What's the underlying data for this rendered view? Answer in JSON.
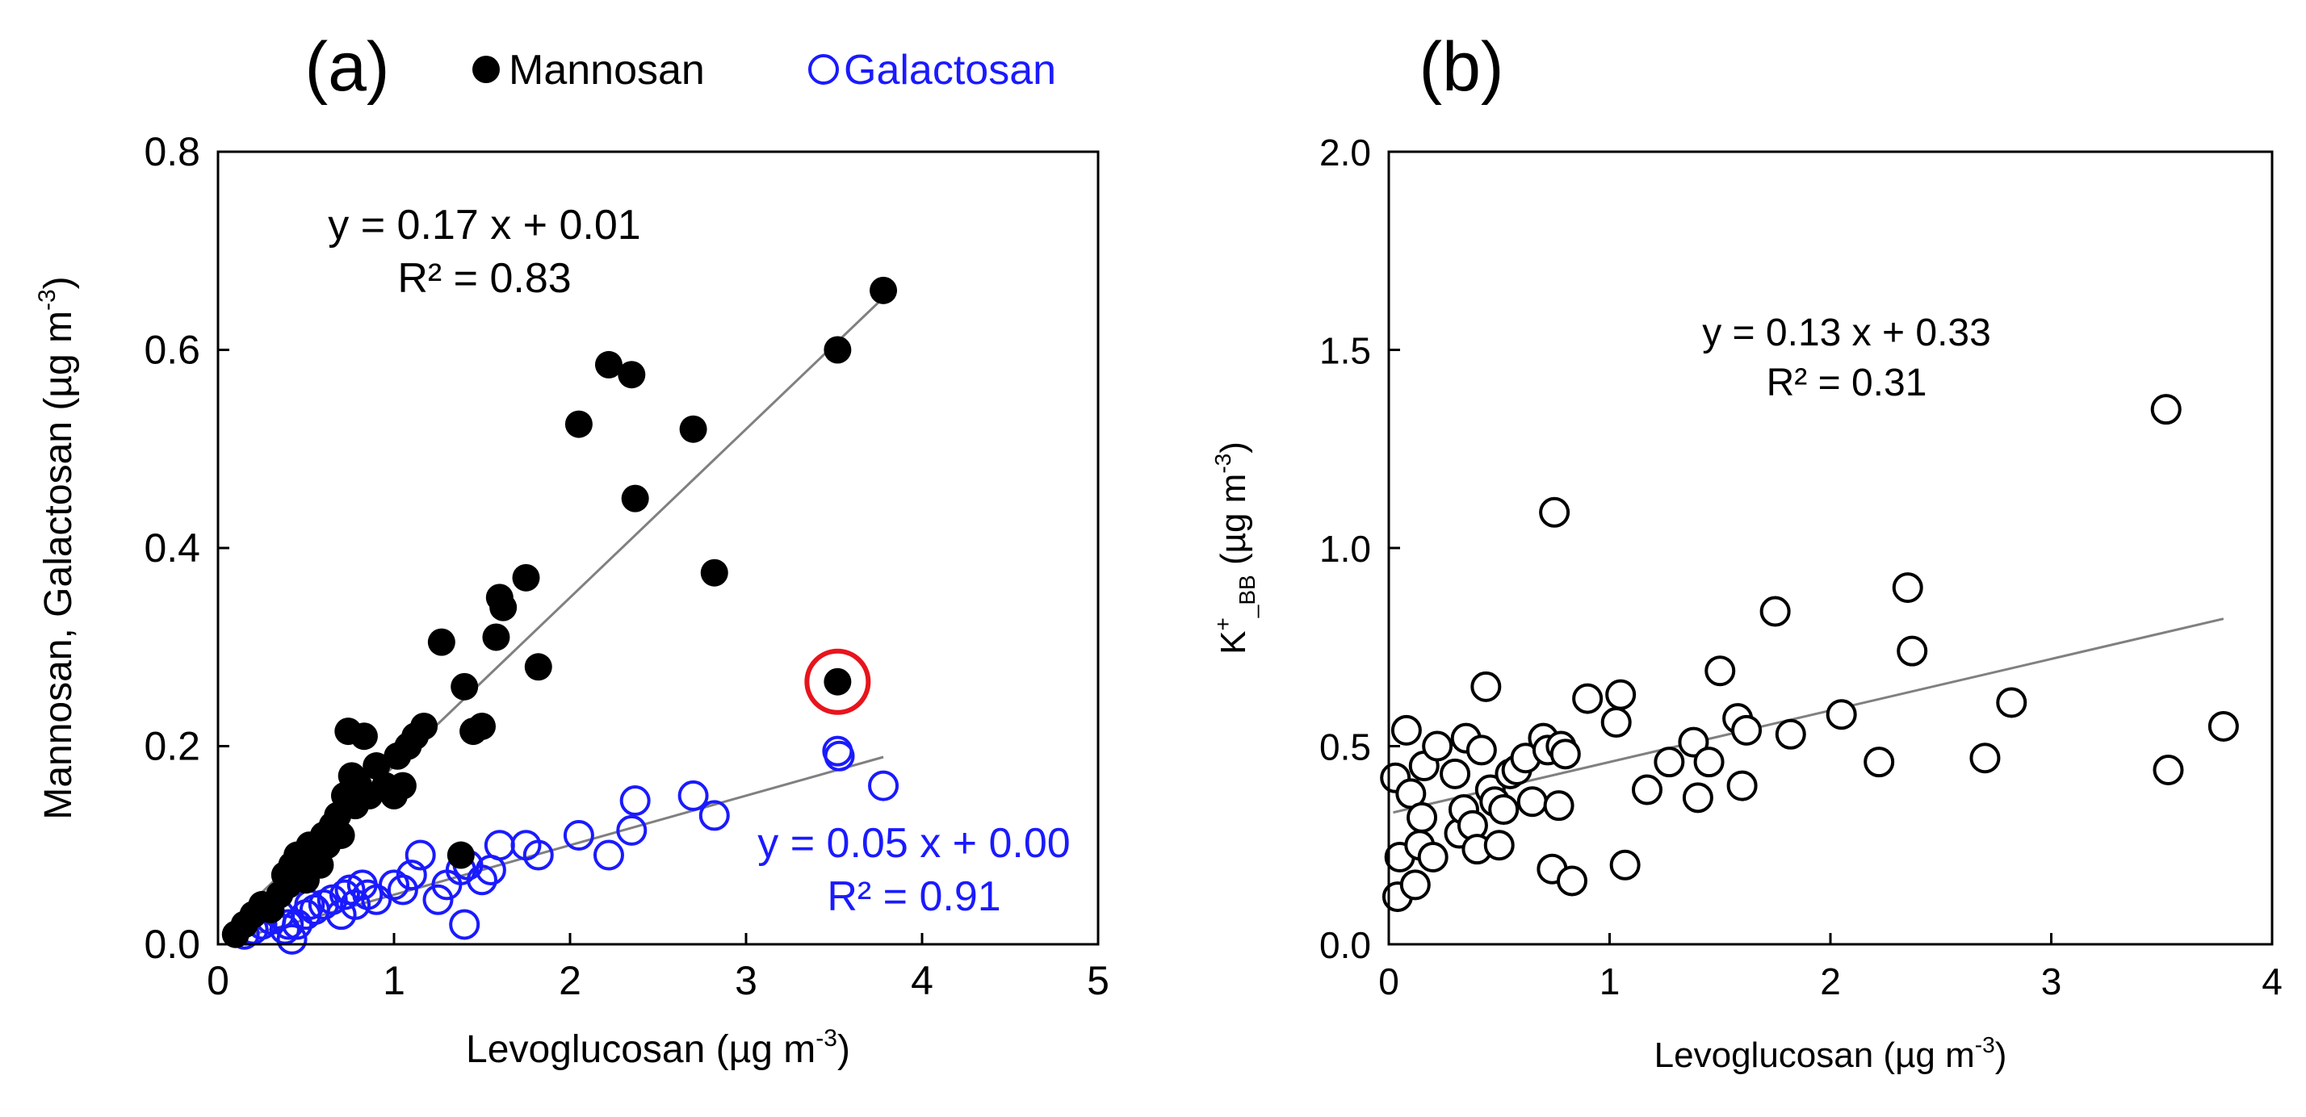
{
  "figure": {
    "panels": [
      {
        "id": "a",
        "label": "(a)"
      },
      {
        "id": "b",
        "label": "(b)"
      }
    ]
  },
  "colors": {
    "mannosan": "#000000",
    "galactosan": "#1a1aff",
    "highlight_ring": "#e8141c",
    "fit_line": "#808080",
    "axis": "#000000"
  },
  "chart_data": [
    {
      "type": "scatter",
      "panel_label": "(a)",
      "xlabel": "Levoglucosan (µg m",
      "xlabel_sup": "-3",
      "xlabel_end": ")",
      "ylabel": "Mannosan, Galactosan (µg m",
      "ylabel_sup": "-3",
      "ylabel_end": ")",
      "xlim": [
        0,
        5
      ],
      "ylim": [
        0,
        0.8
      ],
      "xticks": [
        0,
        1,
        2,
        3,
        4,
        5
      ],
      "xtick_labels": [
        "0",
        "1",
        "2",
        "3",
        "4",
        "5"
      ],
      "yticks": [
        0,
        0.2,
        0.4,
        0.6,
        0.8
      ],
      "ytick_labels": [
        "0.0",
        "0.2",
        "0.4",
        "0.6",
        "0.8"
      ],
      "legend": {
        "placement": "top",
        "entries": [
          {
            "label": "Mannosan",
            "marker": "filled",
            "color": "#000000"
          },
          {
            "label": "Galactosan",
            "marker": "open",
            "color": "#1a1aff"
          }
        ]
      },
      "series": [
        {
          "name": "Mannosan",
          "marker": "filled",
          "color": "#000000",
          "fit": {
            "slope": 0.17,
            "intercept": 0.01,
            "x_range": [
              0.1,
              3.78
            ]
          },
          "eq_line1": "y = 0.17 x + 0.01",
          "eq_line2": "R² = 0.83",
          "points": [
            [
              0.1,
              0.01
            ],
            [
              0.15,
              0.02
            ],
            [
              0.2,
              0.03
            ],
            [
              0.25,
              0.04
            ],
            [
              0.3,
              0.035
            ],
            [
              0.35,
              0.05
            ],
            [
              0.38,
              0.07
            ],
            [
              0.4,
              0.06
            ],
            [
              0.42,
              0.08
            ],
            [
              0.45,
              0.09
            ],
            [
              0.48,
              0.07
            ],
            [
              0.5,
              0.065
            ],
            [
              0.52,
              0.1
            ],
            [
              0.55,
              0.09
            ],
            [
              0.58,
              0.08
            ],
            [
              0.6,
              0.11
            ],
            [
              0.62,
              0.1
            ],
            [
              0.65,
              0.12
            ],
            [
              0.68,
              0.13
            ],
            [
              0.7,
              0.11
            ],
            [
              0.72,
              0.15
            ],
            [
              0.74,
              0.215
            ],
            [
              0.76,
              0.17
            ],
            [
              0.78,
              0.14
            ],
            [
              0.8,
              0.16
            ],
            [
              0.83,
              0.21
            ],
            [
              0.86,
              0.15
            ],
            [
              0.9,
              0.18
            ],
            [
              0.95,
              0.16
            ],
            [
              1.0,
              0.15
            ],
            [
              1.02,
              0.19
            ],
            [
              1.05,
              0.16
            ],
            [
              1.08,
              0.2
            ],
            [
              1.12,
              0.21
            ],
            [
              1.17,
              0.22
            ],
            [
              1.27,
              0.305
            ],
            [
              1.38,
              0.09
            ],
            [
              1.4,
              0.26
            ],
            [
              1.45,
              0.215
            ],
            [
              1.5,
              0.22
            ],
            [
              1.58,
              0.31
            ],
            [
              1.6,
              0.35
            ],
            [
              1.62,
              0.34
            ],
            [
              1.75,
              0.37
            ],
            [
              1.82,
              0.28
            ],
            [
              2.05,
              0.525
            ],
            [
              2.22,
              0.585
            ],
            [
              2.35,
              0.575
            ],
            [
              2.37,
              0.45
            ],
            [
              2.7,
              0.52
            ],
            [
              2.82,
              0.375
            ],
            [
              3.52,
              0.6
            ],
            [
              3.78,
              0.66
            ],
            [
              3.52,
              0.265
            ]
          ]
        },
        {
          "name": "Galactosan",
          "marker": "open",
          "color": "#1a1aff",
          "fit": {
            "slope": 0.05,
            "intercept": 0.0,
            "x_range": [
              0.1,
              3.78
            ]
          },
          "eq_line1": "y = 0.05 x + 0.00",
          "eq_line2": "R² = 0.91",
          "points": [
            [
              0.15,
              0.01
            ],
            [
              0.2,
              0.015
            ],
            [
              0.25,
              0.02
            ],
            [
              0.3,
              0.025
            ],
            [
              0.35,
              0.03
            ],
            [
              0.38,
              0.015
            ],
            [
              0.4,
              0.02
            ],
            [
              0.42,
              0.005
            ],
            [
              0.45,
              0.02
            ],
            [
              0.5,
              0.03
            ],
            [
              0.52,
              0.04
            ],
            [
              0.55,
              0.035
            ],
            [
              0.6,
              0.04
            ],
            [
              0.65,
              0.045
            ],
            [
              0.7,
              0.03
            ],
            [
              0.72,
              0.05
            ],
            [
              0.75,
              0.055
            ],
            [
              0.78,
              0.04
            ],
            [
              0.82,
              0.06
            ],
            [
              0.85,
              0.05
            ],
            [
              0.9,
              0.045
            ],
            [
              1.0,
              0.06
            ],
            [
              1.05,
              0.055
            ],
            [
              1.1,
              0.07
            ],
            [
              1.15,
              0.09
            ],
            [
              1.25,
              0.045
            ],
            [
              1.3,
              0.06
            ],
            [
              1.38,
              0.075
            ],
            [
              1.4,
              0.02
            ],
            [
              1.42,
              0.08
            ],
            [
              1.5,
              0.065
            ],
            [
              1.55,
              0.075
            ],
            [
              1.6,
              0.1
            ],
            [
              1.75,
              0.1
            ],
            [
              1.82,
              0.09
            ],
            [
              2.05,
              0.11
            ],
            [
              2.22,
              0.09
            ],
            [
              2.35,
              0.115
            ],
            [
              2.37,
              0.145
            ],
            [
              2.7,
              0.15
            ],
            [
              2.82,
              0.13
            ],
            [
              3.52,
              0.195
            ],
            [
              3.53,
              0.19
            ],
            [
              3.78,
              0.16
            ]
          ]
        }
      ],
      "annotations": [
        {
          "type": "circle",
          "note": "highlighted outlier",
          "x": 3.52,
          "y": 0.265
        }
      ]
    },
    {
      "type": "scatter",
      "panel_label": "(b)",
      "xlabel": "Levoglucosan (µg m",
      "xlabel_sup": "-3",
      "xlabel_end": ")",
      "ylabel": "K",
      "ylabel_sup": "+",
      "ylabel_sub": "_BB",
      "ylabel_end": " (µg m",
      "ylabel_sup2": "-3",
      "ylabel_end2": ")",
      "xlim": [
        0,
        4
      ],
      "ylim": [
        0,
        2.0
      ],
      "xticks": [
        0,
        1,
        2,
        3,
        4
      ],
      "xtick_labels": [
        "0",
        "1",
        "2",
        "3",
        "4"
      ],
      "yticks": [
        0,
        0.5,
        1.0,
        1.5,
        2.0
      ],
      "ytick_labels": [
        "0.0",
        "0.5",
        "1.0",
        "1.5",
        "2.0"
      ],
      "series": [
        {
          "name": "K+_BB",
          "marker": "open",
          "color": "#000000",
          "fit": {
            "slope": 0.13,
            "intercept": 0.33,
            "x_range": [
              0.02,
              3.78
            ]
          },
          "eq_line1": "y = 0.13 x + 0.33",
          "eq_line2": "R² = 0.31",
          "points": [
            [
              0.03,
              0.42
            ],
            [
              0.04,
              0.12
            ],
            [
              0.05,
              0.22
            ],
            [
              0.08,
              0.54
            ],
            [
              0.1,
              0.38
            ],
            [
              0.12,
              0.15
            ],
            [
              0.14,
              0.25
            ],
            [
              0.15,
              0.32
            ],
            [
              0.16,
              0.45
            ],
            [
              0.2,
              0.22
            ],
            [
              0.22,
              0.5
            ],
            [
              0.3,
              0.43
            ],
            [
              0.32,
              0.28
            ],
            [
              0.34,
              0.34
            ],
            [
              0.35,
              0.52
            ],
            [
              0.38,
              0.3
            ],
            [
              0.4,
              0.24
            ],
            [
              0.42,
              0.49
            ],
            [
              0.44,
              0.65
            ],
            [
              0.46,
              0.39
            ],
            [
              0.48,
              0.36
            ],
            [
              0.5,
              0.25
            ],
            [
              0.52,
              0.34
            ],
            [
              0.55,
              0.43
            ],
            [
              0.58,
              0.44
            ],
            [
              0.62,
              0.47
            ],
            [
              0.65,
              0.36
            ],
            [
              0.7,
              0.52
            ],
            [
              0.72,
              0.49
            ],
            [
              0.74,
              0.19
            ],
            [
              0.75,
              1.09
            ],
            [
              0.77,
              0.35
            ],
            [
              0.78,
              0.5
            ],
            [
              0.8,
              0.48
            ],
            [
              0.83,
              0.16
            ],
            [
              0.9,
              0.62
            ],
            [
              1.03,
              0.56
            ],
            [
              1.05,
              0.63
            ],
            [
              1.07,
              0.2
            ],
            [
              1.17,
              0.39
            ],
            [
              1.27,
              0.46
            ],
            [
              1.38,
              0.51
            ],
            [
              1.4,
              0.37
            ],
            [
              1.45,
              0.46
            ],
            [
              1.5,
              0.69
            ],
            [
              1.58,
              0.57
            ],
            [
              1.6,
              0.4
            ],
            [
              1.62,
              0.54
            ],
            [
              1.75,
              0.84
            ],
            [
              1.82,
              0.53
            ],
            [
              2.05,
              0.58
            ],
            [
              2.22,
              0.46
            ],
            [
              2.35,
              0.9
            ],
            [
              2.37,
              0.74
            ],
            [
              2.7,
              0.47
            ],
            [
              2.82,
              0.61
            ],
            [
              3.52,
              1.35
            ],
            [
              3.53,
              0.44
            ],
            [
              3.78,
              0.55
            ]
          ]
        }
      ]
    }
  ]
}
